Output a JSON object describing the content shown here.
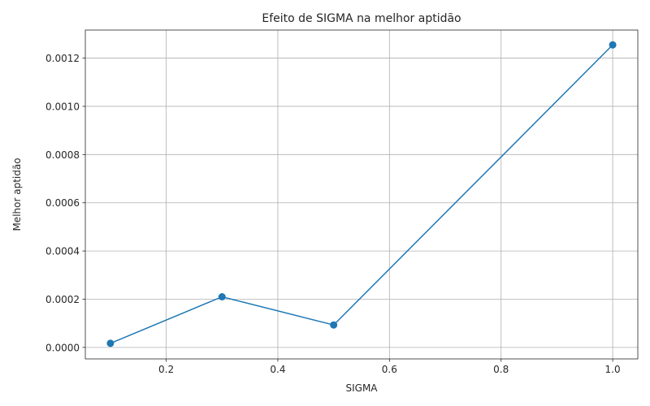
{
  "chart_data": {
    "type": "line",
    "title": "Efeito de SIGMA na melhor aptidão",
    "xlabel": "SIGMA",
    "ylabel": "Melhor aptidão",
    "xlim": [
      0.055,
      1.045
    ],
    "ylim": [
      -4.77e-05,
      0.0013165
    ],
    "xticks": [
      0.2,
      0.4,
      0.6,
      0.8,
      1.0
    ],
    "xtick_labels": [
      "0.2",
      "0.4",
      "0.6",
      "0.8",
      "1.0"
    ],
    "yticks": [
      0.0,
      0.0002,
      0.0004,
      0.0006,
      0.0008,
      0.001,
      0.0012
    ],
    "ytick_labels": [
      "0.0000",
      "0.0002",
      "0.0004",
      "0.0006",
      "0.0008",
      "0.0010",
      "0.0012"
    ],
    "grid": true,
    "series": [
      {
        "x": [
          0.1,
          0.3,
          0.5,
          1.0
        ],
        "y": [
          1.7e-05,
          0.00021,
          9.3e-05,
          0.001255
        ],
        "color": "#1f77b4",
        "marker": "circle"
      }
    ]
  }
}
